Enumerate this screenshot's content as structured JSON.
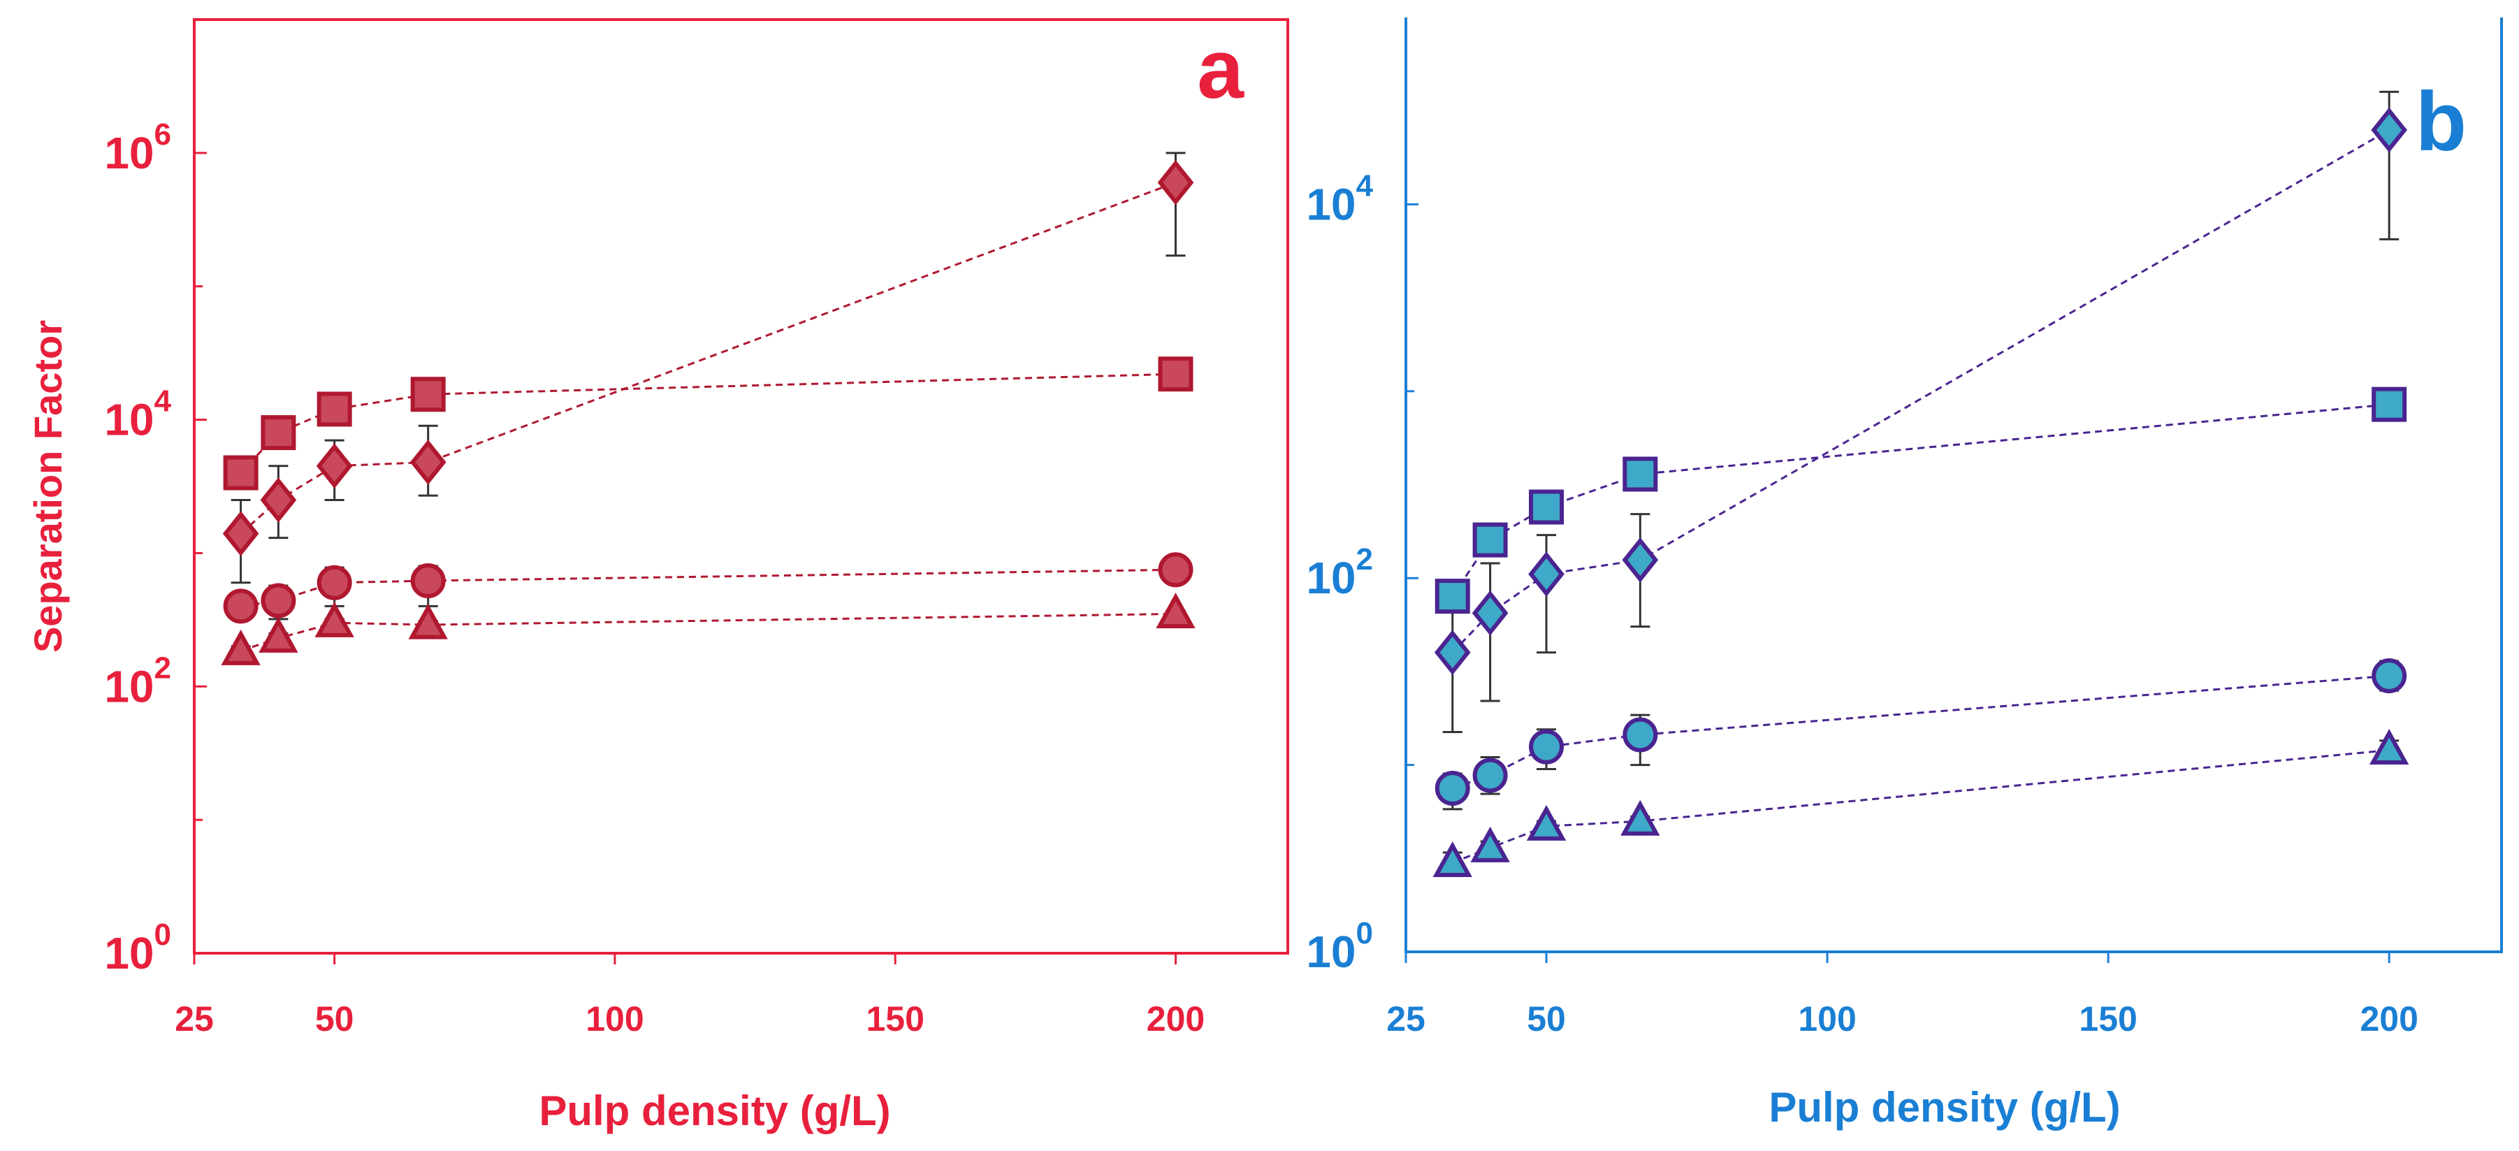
{
  "chart_data": [
    {
      "type": "scatter",
      "panel_label": "a",
      "xlabel": "Pulp density (g/L)",
      "ylabel": "Separation Factor",
      "xlim": [
        25,
        220
      ],
      "xticks": [
        25,
        50,
        100,
        150,
        200
      ],
      "yscale": "log",
      "ylim_exponent": [
        0,
        7
      ],
      "yticks": [
        {
          "base": "10",
          "exp": "0",
          "value": 1
        },
        {
          "base": "10",
          "exp": "2",
          "value": 100
        },
        {
          "base": "10",
          "exp": "4",
          "value": 10000
        },
        {
          "base": "10",
          "exp": "6",
          "value": 1000000
        }
      ],
      "color": "#e8203c",
      "marker_fill": "#c9485b",
      "marker_edge": "#b01830",
      "line_style": "dashed",
      "series": [
        {
          "marker": "diamond",
          "x": [
            33.3,
            40,
            50,
            66.7,
            200
          ],
          "y": [
            1400,
            2500,
            4500,
            4800,
            600000
          ],
          "err_low": [
            600,
            1300,
            2500,
            2700,
            170000
          ],
          "err_high": [
            2500,
            4500,
            7000,
            9000,
            1000000
          ]
        },
        {
          "marker": "square",
          "x": [
            33.3,
            40,
            50,
            66.7,
            200
          ],
          "y": [
            4000,
            8000,
            12000,
            15500,
            22000
          ],
          "err_low": [
            3500,
            7000,
            11000,
            14500,
            20000
          ],
          "err_high": [
            4500,
            9000,
            13000,
            16500,
            24000
          ]
        },
        {
          "marker": "circle",
          "x": [
            33.3,
            40,
            50,
            66.7,
            200
          ],
          "y": [
            400,
            440,
            600,
            620,
            750
          ],
          "err_low": [
            320,
            320,
            400,
            400,
            600
          ],
          "err_high": [
            480,
            570,
            780,
            800,
            900
          ]
        },
        {
          "marker": "triangle",
          "x": [
            33.3,
            40,
            50,
            66.7,
            200
          ],
          "y": [
            185,
            230,
            300,
            290,
            350
          ],
          "err_low": [
            170,
            210,
            280,
            270,
            330
          ],
          "err_high": [
            200,
            250,
            320,
            310,
            370
          ]
        }
      ]
    },
    {
      "type": "scatter",
      "panel_label": "b",
      "xlabel": "Pulp density (g/L)",
      "ylabel": "",
      "xlim": [
        25,
        220
      ],
      "xticks": [
        25,
        50,
        100,
        150,
        200
      ],
      "yscale": "log",
      "ylim_exponent": [
        0,
        5
      ],
      "yticks": [
        {
          "base": "10",
          "exp": "0",
          "value": 1
        },
        {
          "base": "10",
          "exp": "2",
          "value": 100
        },
        {
          "base": "10",
          "exp": "4",
          "value": 10000
        }
      ],
      "color": "#1a7fd4",
      "marker_fill": "#3ea9c8",
      "marker_edge": "#4a2490",
      "line_style": "dashed",
      "series": [
        {
          "marker": "diamond",
          "x": [
            33.3,
            40,
            50,
            66.7,
            200
          ],
          "y": [
            40,
            65,
            105,
            125,
            25000
          ],
          "err_low": [
            15,
            22,
            40,
            55,
            6500
          ],
          "err_high": [
            75,
            120,
            170,
            220,
            40000
          ]
        },
        {
          "marker": "square",
          "x": [
            33.3,
            40,
            50,
            66.7,
            200
          ],
          "y": [
            80,
            160,
            240,
            360,
            850
          ],
          "err_low": [
            70,
            145,
            225,
            345,
            800
          ],
          "err_high": [
            90,
            175,
            255,
            375,
            900
          ]
        },
        {
          "marker": "circle",
          "x": [
            33.3,
            40,
            50,
            66.7,
            200
          ],
          "y": [
            7.5,
            8.8,
            12.5,
            14.5,
            30
          ],
          "err_low": [
            5.8,
            7,
            9.5,
            10,
            25
          ],
          "err_high": [
            9,
            11,
            15.5,
            18.5,
            36
          ]
        },
        {
          "marker": "triangle",
          "x": [
            33.3,
            40,
            50,
            66.7,
            200
          ],
          "y": [
            3,
            3.6,
            4.7,
            5,
            12
          ],
          "err_low": [
            2.6,
            3.3,
            4.4,
            4.7,
            10.5
          ],
          "err_high": [
            3.4,
            3.9,
            5,
            5.3,
            13.5
          ]
        }
      ]
    }
  ]
}
